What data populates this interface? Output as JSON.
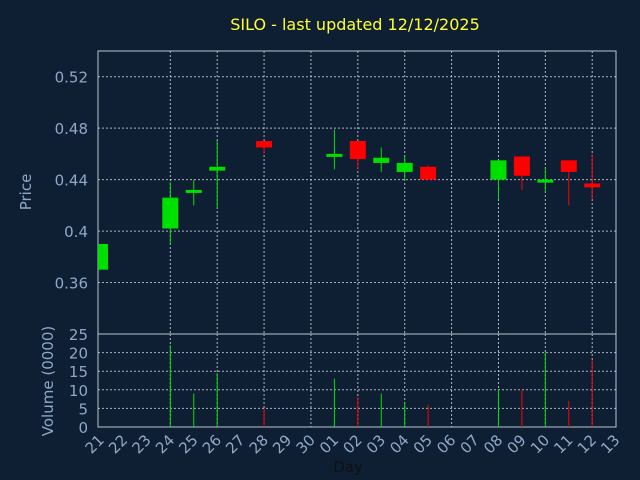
{
  "chart_data": {
    "type": "candlestick",
    "title": "SILO - last updated 12/12/2025",
    "xlabel": "Day",
    "ylabel_price": "Price",
    "ylabel_volume": "Volume (0000)",
    "price_ticks": [
      "0.36",
      "0.4",
      "0.44",
      "0.48",
      "0.52"
    ],
    "price_ylim": [
      0.32,
      0.54
    ],
    "volume_ticks": [
      "0",
      "5",
      "10",
      "15",
      "20",
      "25"
    ],
    "volume_ylim": [
      0,
      25
    ],
    "grid": true,
    "colors": {
      "up": "#00e000",
      "down": "#ff0000",
      "background": "#0f1f33",
      "title": "#ffff33",
      "tick": "#8fa8c8"
    },
    "days": [
      "21",
      "22",
      "23",
      "24",
      "25",
      "26",
      "27",
      "28",
      "29",
      "30",
      "01",
      "02",
      "03",
      "04",
      "05",
      "06",
      "07",
      "08",
      "09",
      "10",
      "11",
      "12",
      "13"
    ],
    "candles": [
      {
        "day": "21",
        "open": 0.37,
        "close": 0.39,
        "high": 0.39,
        "low": 0.37,
        "volume": 0
      },
      {
        "day": "24",
        "open": 0.402,
        "close": 0.426,
        "high": 0.438,
        "low": 0.39,
        "volume": 22
      },
      {
        "day": "25",
        "open": 0.43,
        "close": 0.432,
        "high": 0.44,
        "low": 0.42,
        "volume": 9
      },
      {
        "day": "26",
        "open": 0.447,
        "close": 0.45,
        "high": 0.47,
        "low": 0.418,
        "volume": 14.5
      },
      {
        "day": "28",
        "open": 0.47,
        "close": 0.465,
        "high": 0.47,
        "low": 0.46,
        "volume": 5
      },
      {
        "day": "01",
        "open": 0.459,
        "close": 0.46,
        "high": 0.479,
        "low": 0.448,
        "volume": 13
      },
      {
        "day": "02",
        "open": 0.47,
        "close": 0.456,
        "high": 0.47,
        "low": 0.448,
        "volume": 8
      },
      {
        "day": "03",
        "open": 0.453,
        "close": 0.457,
        "high": 0.465,
        "low": 0.446,
        "volume": 9
      },
      {
        "day": "04",
        "open": 0.446,
        "close": 0.453,
        "high": 0.458,
        "low": 0.44,
        "volume": 6.5
      },
      {
        "day": "05",
        "open": 0.45,
        "close": 0.44,
        "high": 0.451,
        "low": 0.44,
        "volume": 6
      },
      {
        "day": "08",
        "open": 0.44,
        "close": 0.455,
        "high": 0.455,
        "low": 0.425,
        "volume": 10
      },
      {
        "day": "09",
        "open": 0.458,
        "close": 0.443,
        "high": 0.458,
        "low": 0.432,
        "volume": 10
      },
      {
        "day": "10",
        "open": 0.439,
        "close": 0.44,
        "high": 0.449,
        "low": 0.43,
        "volume": 20
      },
      {
        "day": "11",
        "open": 0.455,
        "close": 0.446,
        "high": 0.455,
        "low": 0.42,
        "volume": 7
      },
      {
        "day": "12",
        "open": 0.437,
        "close": 0.434,
        "high": 0.46,
        "low": 0.425,
        "volume": 18
      }
    ]
  }
}
